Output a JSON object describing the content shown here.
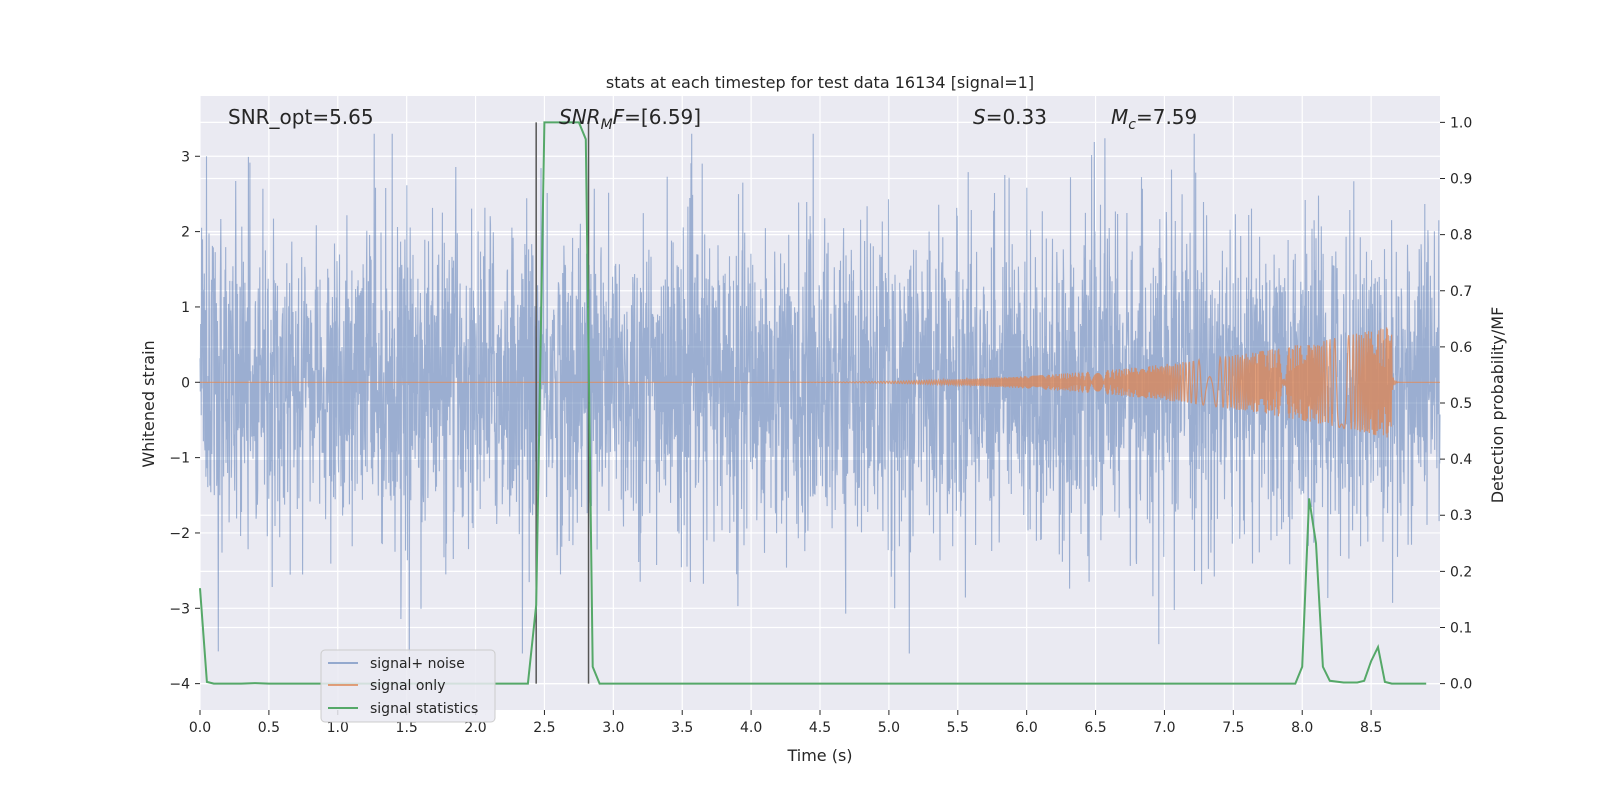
{
  "chart_data": {
    "type": "line",
    "title": "stats at each timestep for test data 16134 [signal=1]",
    "xlabel": "Time (s)",
    "ylabel_left": "Whitened strain",
    "ylabel_right": "Detection probability/MF",
    "xlim": [
      0.0,
      9.0
    ],
    "ylim_left": [
      -4.35,
      3.8
    ],
    "ylim_right": [
      -0.047,
      1.047
    ],
    "x_ticks": [
      "0.0",
      "0.5",
      "1.0",
      "1.5",
      "2.0",
      "2.5",
      "3.0",
      "3.5",
      "4.0",
      "4.5",
      "5.0",
      "5.5",
      "6.0",
      "6.5",
      "7.0",
      "7.5",
      "8.0",
      "8.5"
    ],
    "x_tick_values": [
      0.0,
      0.5,
      1.0,
      1.5,
      2.0,
      2.5,
      3.0,
      3.5,
      4.0,
      4.5,
      5.0,
      5.5,
      6.0,
      6.5,
      7.0,
      7.5,
      8.0,
      8.5
    ],
    "y_left_ticks": [
      "3",
      "2",
      "1",
      "0",
      "−1",
      "−2",
      "−3",
      "−4"
    ],
    "y_left_tick_values": [
      3,
      2,
      1,
      0,
      -1,
      -2,
      -3,
      -4
    ],
    "y_right_ticks": [
      "1.0",
      "0.9",
      "0.8",
      "0.7",
      "0.6",
      "0.5",
      "0.4",
      "0.3",
      "0.2",
      "0.1",
      "0.0"
    ],
    "y_right_tick_values": [
      1.0,
      0.9,
      0.8,
      0.7,
      0.6,
      0.5,
      0.4,
      0.3,
      0.2,
      0.1,
      0.0
    ],
    "grid": true,
    "legend_position": "lower-left",
    "annotations": {
      "snr_opt": "SNR_opt=5.65",
      "snr_mf": "=[6.59]",
      "snr_mf_symbol": "SNR",
      "snr_mf_sub": "M",
      "snr_mf_tail": "F",
      "s_value": "=0.33",
      "s_symbol": "S",
      "mc_value": "=7.59",
      "mc_symbol": "M",
      "mc_sub": "c"
    },
    "vertical_lines": [
      2.44,
      2.82
    ],
    "series": [
      {
        "name": "signal+ noise",
        "color": "#4c72b0",
        "axis": "left",
        "duration": 9.0,
        "amplitude_range": [
          -3.6,
          3.3
        ]
      },
      {
        "name": "signal only",
        "color": "#dd8452",
        "axis": "left",
        "chirp_start": 4.0,
        "chirp_end": 8.65,
        "peak_amplitude": 0.75
      },
      {
        "name": "signal statistics",
        "color": "#55a868",
        "axis": "right",
        "x": [
          0.0,
          0.05,
          0.1,
          0.2,
          0.3,
          0.4,
          0.5,
          0.6,
          0.7,
          0.8,
          0.9,
          1.0,
          1.5,
          2.0,
          2.38,
          2.44,
          2.5,
          2.55,
          2.6,
          2.7,
          2.75,
          2.8,
          2.85,
          2.9,
          2.95,
          3.0,
          4.0,
          5.0,
          6.0,
          7.0,
          7.95,
          8.0,
          8.05,
          8.1,
          8.15,
          8.2,
          8.3,
          8.4,
          8.45,
          8.5,
          8.55,
          8.6,
          8.65,
          8.7,
          8.8,
          8.9
        ],
        "values": [
          0.17,
          0.003,
          0.0,
          0.0,
          0.0,
          0.001,
          0.0,
          0.0,
          0.0,
          0.0,
          0.0,
          0.0,
          0.0,
          0.0,
          0.0,
          0.14,
          1.0,
          1.0,
          1.0,
          1.0,
          1.0,
          0.97,
          0.03,
          0.0,
          0.0,
          0.0,
          0.0,
          0.0,
          0.0,
          0.0,
          0.0,
          0.03,
          0.33,
          0.25,
          0.03,
          0.005,
          0.002,
          0.002,
          0.005,
          0.04,
          0.065,
          0.003,
          0.0,
          0.0,
          0.0,
          0.0
        ]
      }
    ]
  }
}
